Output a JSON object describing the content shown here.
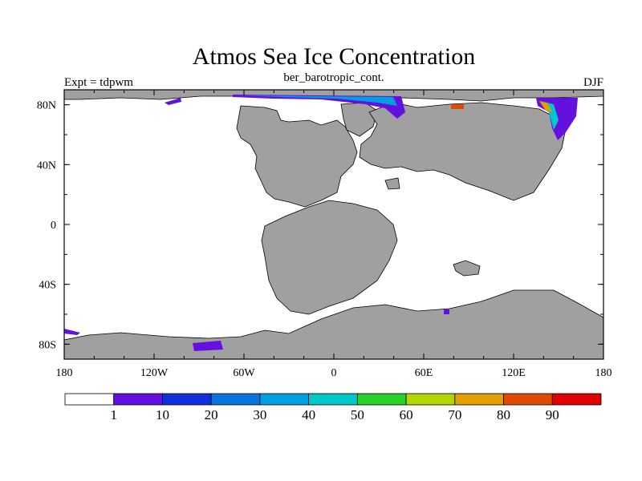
{
  "map": {
    "title": "Atmos Sea Ice Concentration",
    "subtitle": "ber_barotropic_cont.",
    "left_label": "Expt = tdpwm",
    "right_label": "DJF",
    "land_color": "#a0a0a0",
    "ocean_color": "#ffffff",
    "lon_ticks": [
      "180",
      "120W",
      "60W",
      "0",
      "60E",
      "120E",
      "180"
    ],
    "lat_ticks": [
      "80N",
      "40N",
      "0",
      "40S",
      "80S"
    ]
  },
  "colorbar": {
    "labels": [
      "1",
      "10",
      "20",
      "30",
      "40",
      "50",
      "60",
      "70",
      "80",
      "90"
    ],
    "colors": [
      "#ffffff",
      "#6410e0",
      "#1030e0",
      "#0a74dc",
      "#00a0e0",
      "#00c8c8",
      "#28d028",
      "#b0d800",
      "#e0a000",
      "#e04a00",
      "#e00000"
    ]
  }
}
